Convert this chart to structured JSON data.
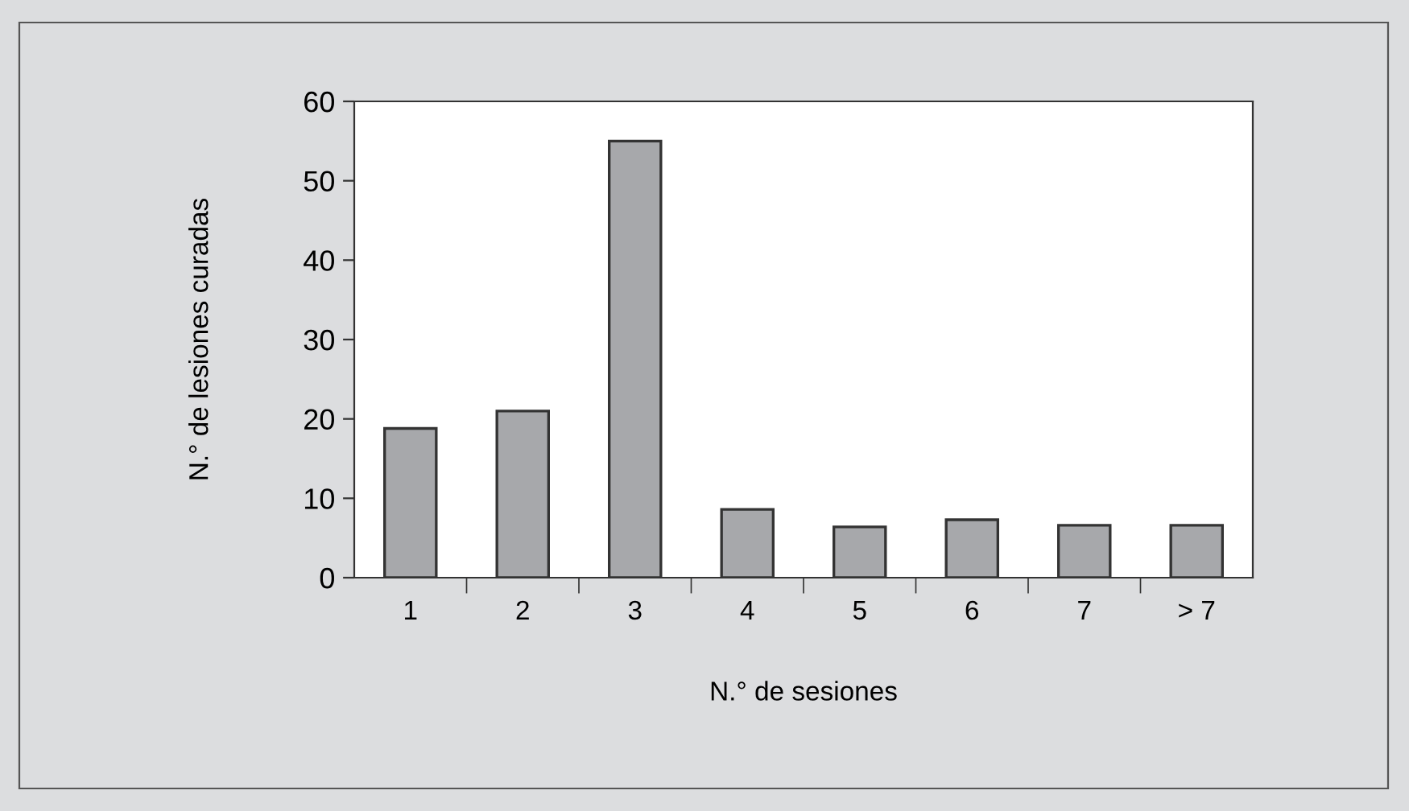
{
  "chart_data": {
    "type": "bar",
    "xlabel": "N.° de sesiones",
    "ylabel": "N.° de lesiones curadas",
    "categories": [
      "1",
      "2",
      "3",
      "4",
      "5",
      "6",
      "7",
      "> 7"
    ],
    "values": [
      18.8,
      21,
      55,
      8.6,
      6.4,
      7.3,
      6.6,
      6.6
    ],
    "color": "#a7a8ab",
    "ylim": [
      0,
      60
    ],
    "yticks": [
      0,
      10,
      20,
      30,
      40,
      50,
      60
    ],
    "grid": false,
    "legend": false
  }
}
